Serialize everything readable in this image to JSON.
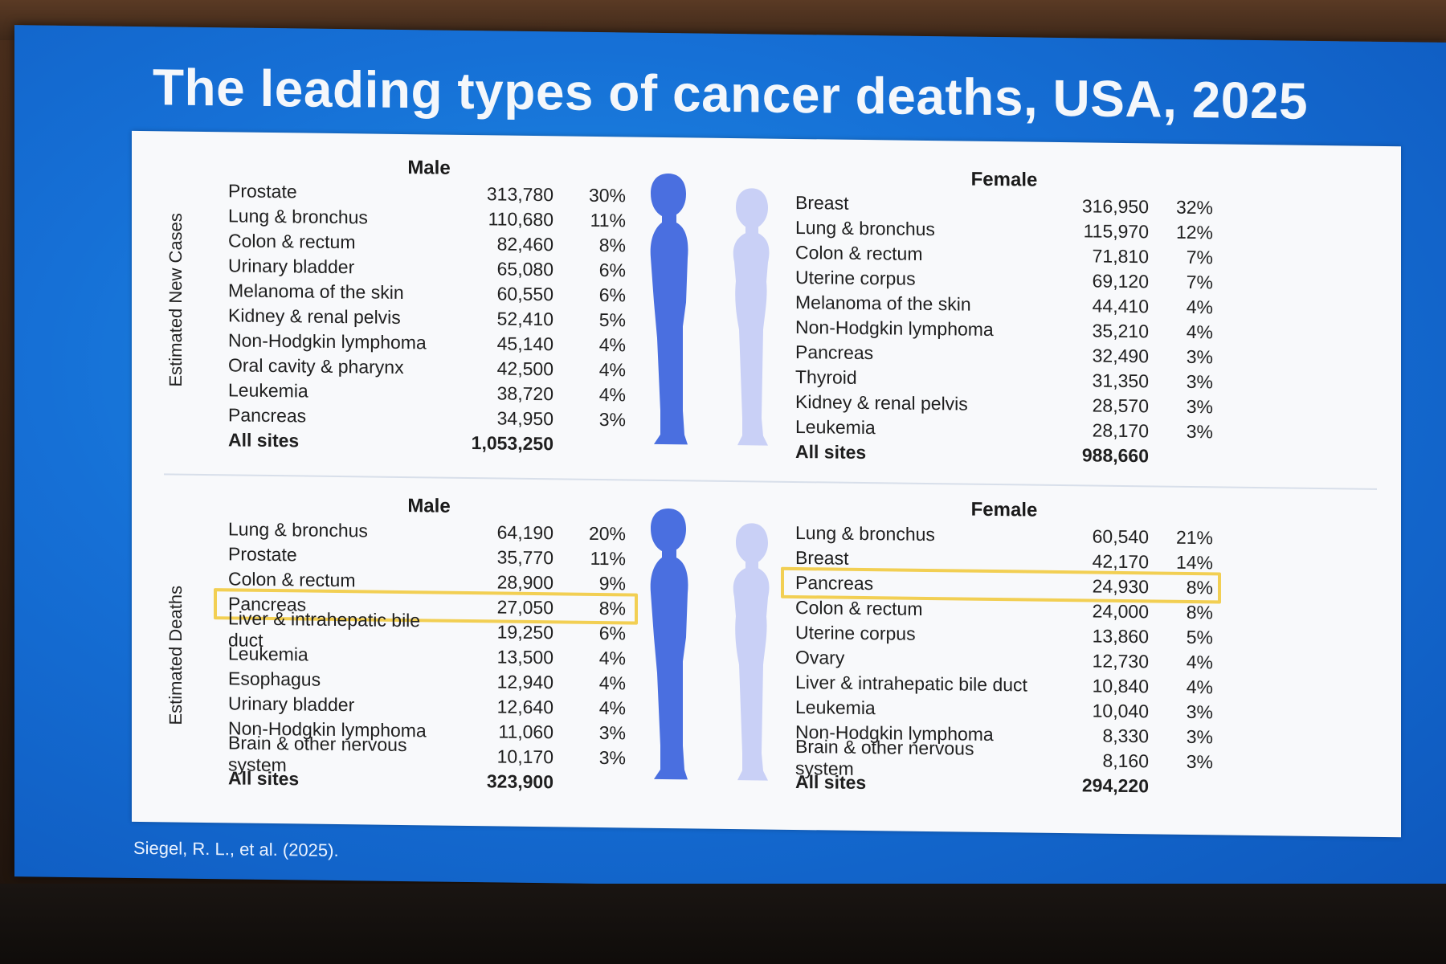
{
  "slide": {
    "title": "The leading types of cancer deaths, USA, 2025",
    "citation": "Siegel, R. L., et al. (2025)."
  },
  "colors": {
    "screen_blue": "#1670d6",
    "male_figure": "#4a6fe0",
    "female_figure": "#c9d0f6",
    "highlight": "#f2cf53"
  },
  "new_cases": {
    "label": "Estimated New Cases",
    "male": {
      "heading": "Male",
      "rows": [
        {
          "site": "Prostate",
          "count": "313,780",
          "pct": "30%"
        },
        {
          "site": "Lung & bronchus",
          "count": "110,680",
          "pct": "11%"
        },
        {
          "site": "Colon & rectum",
          "count": "82,460",
          "pct": "8%"
        },
        {
          "site": "Urinary bladder",
          "count": "65,080",
          "pct": "6%"
        },
        {
          "site": "Melanoma of the skin",
          "count": "60,550",
          "pct": "6%"
        },
        {
          "site": "Kidney & renal pelvis",
          "count": "52,410",
          "pct": "5%"
        },
        {
          "site": "Non-Hodgkin lymphoma",
          "count": "45,140",
          "pct": "4%"
        },
        {
          "site": "Oral cavity & pharynx",
          "count": "42,500",
          "pct": "4%"
        },
        {
          "site": "Leukemia",
          "count": "38,720",
          "pct": "4%"
        },
        {
          "site": "Pancreas",
          "count": "34,950",
          "pct": "3%"
        }
      ],
      "total": {
        "site": "All sites",
        "count": "1,053,250"
      }
    },
    "female": {
      "heading": "Female",
      "rows": [
        {
          "site": "Breast",
          "count": "316,950",
          "pct": "32%"
        },
        {
          "site": "Lung & bronchus",
          "count": "115,970",
          "pct": "12%"
        },
        {
          "site": "Colon & rectum",
          "count": "71,810",
          "pct": "7%"
        },
        {
          "site": "Uterine corpus",
          "count": "69,120",
          "pct": "7%"
        },
        {
          "site": "Melanoma of the skin",
          "count": "44,410",
          "pct": "4%"
        },
        {
          "site": "Non-Hodgkin lymphoma",
          "count": "35,210",
          "pct": "4%"
        },
        {
          "site": "Pancreas",
          "count": "32,490",
          "pct": "3%"
        },
        {
          "site": "Thyroid",
          "count": "31,350",
          "pct": "3%"
        },
        {
          "site": "Kidney & renal pelvis",
          "count": "28,570",
          "pct": "3%"
        },
        {
          "site": "Leukemia",
          "count": "28,170",
          "pct": "3%"
        }
      ],
      "total": {
        "site": "All sites",
        "count": "988,660"
      }
    }
  },
  "deaths": {
    "label": "Estimated Deaths",
    "male": {
      "heading": "Male",
      "rows": [
        {
          "site": "Lung & bronchus",
          "count": "64,190",
          "pct": "20%"
        },
        {
          "site": "Prostate",
          "count": "35,770",
          "pct": "11%"
        },
        {
          "site": "Colon & rectum",
          "count": "28,900",
          "pct": "9%"
        },
        {
          "site": "Pancreas",
          "count": "27,050",
          "pct": "8%",
          "highlighted": true
        },
        {
          "site": "Liver & intrahepatic bile duct",
          "count": "19,250",
          "pct": "6%"
        },
        {
          "site": "Leukemia",
          "count": "13,500",
          "pct": "4%"
        },
        {
          "site": "Esophagus",
          "count": "12,940",
          "pct": "4%"
        },
        {
          "site": "Urinary bladder",
          "count": "12,640",
          "pct": "4%"
        },
        {
          "site": "Non-Hodgkin lymphoma",
          "count": "11,060",
          "pct": "3%"
        },
        {
          "site": "Brain & other nervous system",
          "count": "10,170",
          "pct": "3%"
        }
      ],
      "total": {
        "site": "All sites",
        "count": "323,900"
      }
    },
    "female": {
      "heading": "Female",
      "rows": [
        {
          "site": "Lung & bronchus",
          "count": "60,540",
          "pct": "21%"
        },
        {
          "site": "Breast",
          "count": "42,170",
          "pct": "14%"
        },
        {
          "site": "Pancreas",
          "count": "24,930",
          "pct": "8%",
          "highlighted": true
        },
        {
          "site": "Colon & rectum",
          "count": "24,000",
          "pct": "8%"
        },
        {
          "site": "Uterine corpus",
          "count": "13,860",
          "pct": "5%"
        },
        {
          "site": "Ovary",
          "count": "12,730",
          "pct": "4%"
        },
        {
          "site": "Liver & intrahepatic bile duct",
          "count": "10,840",
          "pct": "4%"
        },
        {
          "site": "Leukemia",
          "count": "10,040",
          "pct": "3%"
        },
        {
          "site": "Non-Hodgkin lymphoma",
          "count": "8,330",
          "pct": "3%"
        },
        {
          "site": "Brain & other nervous system",
          "count": "8,160",
          "pct": "3%"
        }
      ],
      "total": {
        "site": "All sites",
        "count": "294,220"
      }
    }
  }
}
